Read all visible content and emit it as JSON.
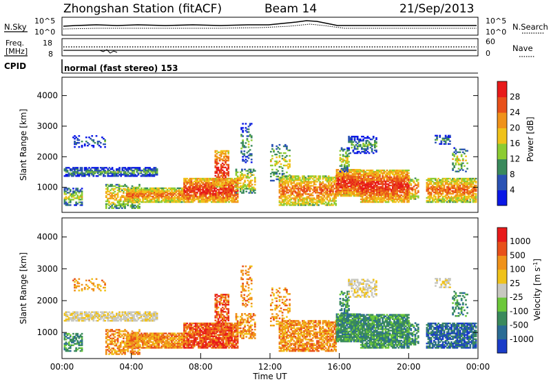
{
  "header": {
    "station": "Zhongshan Station (fitACF)",
    "beam": "Beam 14",
    "date": "21/Sep/2013"
  },
  "top_panel": {
    "left_label": "N.Sky",
    "left_ticks": [
      "10^5",
      "10^0"
    ],
    "right_label": "N.Search",
    "right_ticks": [
      "10^5",
      "10^0"
    ]
  },
  "freq_panel": {
    "left_label_1": "Freq.",
    "left_label_2": "[MHz]",
    "left_ticks": [
      "18",
      "8"
    ],
    "right_label": "Nave",
    "right_ticks": [
      "60",
      "0"
    ]
  },
  "cpid_panel": {
    "label": "CPID",
    "mode_text": "normal (fast stereo) 153"
  },
  "chart_data": [
    {
      "type": "heatmap",
      "name": "power",
      "ylabel": "Slant Range [km]",
      "y_ticks": [
        1000,
        2000,
        3000,
        4000
      ],
      "ylim": [
        180,
        4600
      ],
      "colorbar": {
        "label": "Power [dB]",
        "ticks": [
          "4",
          "8",
          "12",
          "16",
          "20",
          "24",
          "28"
        ],
        "colors": [
          "#0a18e6",
          "#2a52b4",
          "#3a8a5c",
          "#8ccc32",
          "#f0c21a",
          "#f0921a",
          "#e8501a",
          "#e81a1a"
        ]
      }
    },
    {
      "type": "heatmap",
      "name": "velocity",
      "ylabel": "Slant Range [km]",
      "y_ticks": [
        1000,
        2000,
        3000,
        4000
      ],
      "ylim": [
        180,
        4600
      ],
      "xlabel": "Time UT",
      "x_ticks": [
        "00:00",
        "04:00",
        "08:00",
        "12:00",
        "16:00",
        "20:00",
        "00:00"
      ],
      "colorbar": {
        "label_main": "Velocity [m s",
        "label_exp": "-1",
        "label_end": "]",
        "ticks": [
          "1000",
          "500",
          "100",
          "25",
          "-25",
          "-100",
          "-500",
          "-1000"
        ],
        "colors": [
          "#1a3cc8",
          "#2a6c94",
          "#3a8a5c",
          "#6cc83a",
          "#c8c8c0",
          "#f0c21a",
          "#f0921a",
          "#e8501a",
          "#e81a1a"
        ]
      }
    }
  ]
}
